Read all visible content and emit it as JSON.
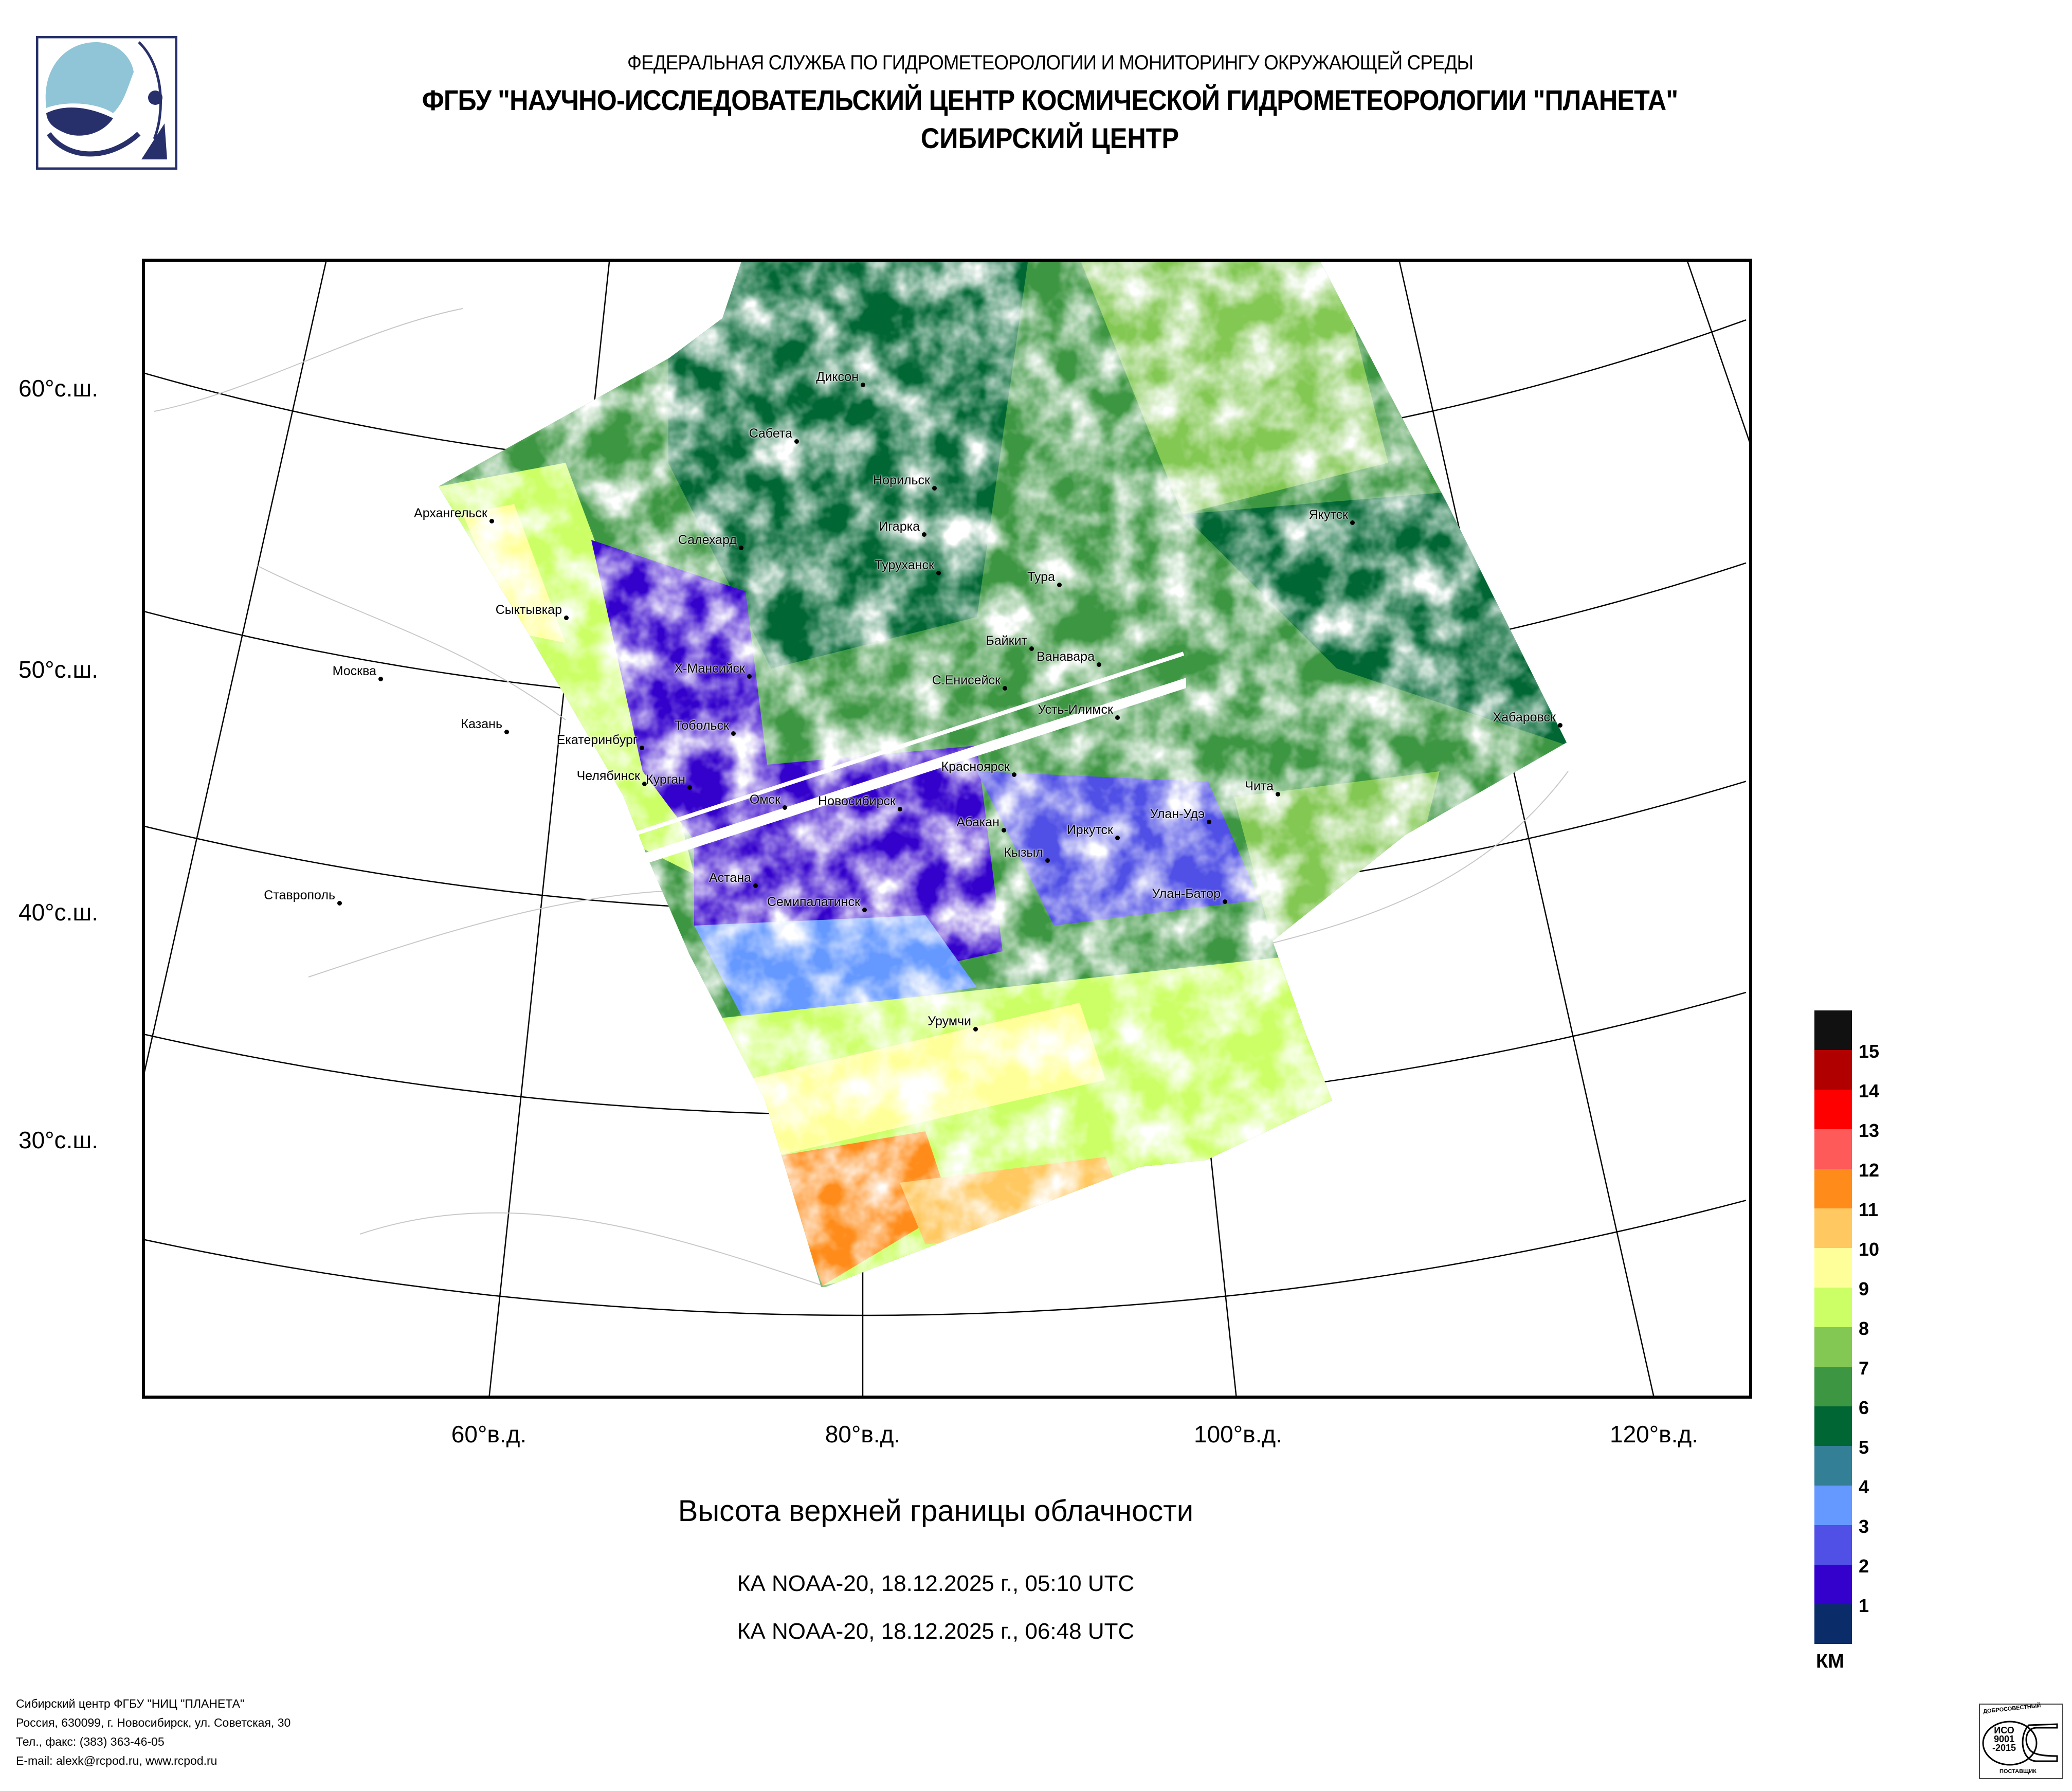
{
  "header": {
    "line1": "ФЕДЕРАЛЬНАЯ СЛУЖБА ПО ГИДРОМЕТЕОРОЛОГИИ И МОНИТОРИНГУ ОКРУЖАЮЩЕЙ СРЕДЫ",
    "line2": "ФГБУ \"НАУЧНО-ИССЛЕДОВАТЕЛЬСКИЙ ЦЕНТР КОСМИЧЕСКОЙ ГИДРОМЕТЕОРОЛОГИИ \"ПЛАНЕТА\"",
    "line3": "СИБИРСКИЙ ЦЕНТР"
  },
  "map": {
    "lat_labels": [
      "60°с.ш.",
      "50°с.ш.",
      "40°с.ш.",
      "30°с.ш."
    ],
    "lon_labels": [
      "60°в.д.",
      "80°в.д.",
      "100°в.д.",
      "120°в.д."
    ],
    "cities": [
      "Диксон",
      "Сабета",
      "Норильск",
      "Архангельск",
      "Игарка",
      "Салехард",
      "Туруханск",
      "Тура",
      "Якутск",
      "Сыктывкар",
      "Байкит",
      "Ванавара",
      "Москва",
      "Х-Мансийск",
      "С.Енисейск",
      "Усть-Илимск",
      "Хабаровск",
      "Казань",
      "Тобольск",
      "Екатеринбург",
      "Челябинск",
      "Курган",
      "Красноярск",
      "Чита",
      "Омск",
      "Новосибирск",
      "Абакан",
      "Улан-Удэ",
      "Иркутск",
      "Кызыл",
      "Астана",
      "Ставрополь",
      "Семипалатинск",
      "Улан-Батор",
      "Урумчи"
    ]
  },
  "title": "Высота верхней границы облачности",
  "passes": [
    "КА NOAA-20, 18.12.2025 г., 05:10 UTC",
    "КА NOAA-20, 18.12.2025 г., 06:48 UTC"
  ],
  "legend": {
    "unit": "КМ",
    "labels": [
      "15",
      "14",
      "13",
      "12",
      "11",
      "10",
      "9",
      "8",
      "7",
      "6",
      "5",
      "4",
      "3",
      "2",
      "1"
    ],
    "colors": [
      "#111111",
      "#b00000",
      "#ff0000",
      "#ff5a5a",
      "#ff8c1a",
      "#ffc860",
      "#ffff99",
      "#ccff66",
      "#84c854",
      "#3d9642",
      "#006633",
      "#337f95",
      "#6699ff",
      "#5050e6",
      "#3300cc",
      "#0a2d6a"
    ]
  },
  "footer": {
    "line1": "Сибирский центр ФГБУ \"НИЦ \"ПЛАНЕТА\"",
    "line2": "Россия, 630099, г. Новосибирск, ул. Советская, 30",
    "line3": "Тел., факс: (383) 363-46-05",
    "line4": "E-mail: alexk@rcpod.ru, www.rcpod.ru"
  },
  "iso_badge": {
    "top": "ДОБРОСОВЕСТНЫЙ",
    "mid1": "ИСО",
    "mid2": "9001",
    "mid3": "-2015",
    "bottom": "ПОСТАВЩИК"
  }
}
